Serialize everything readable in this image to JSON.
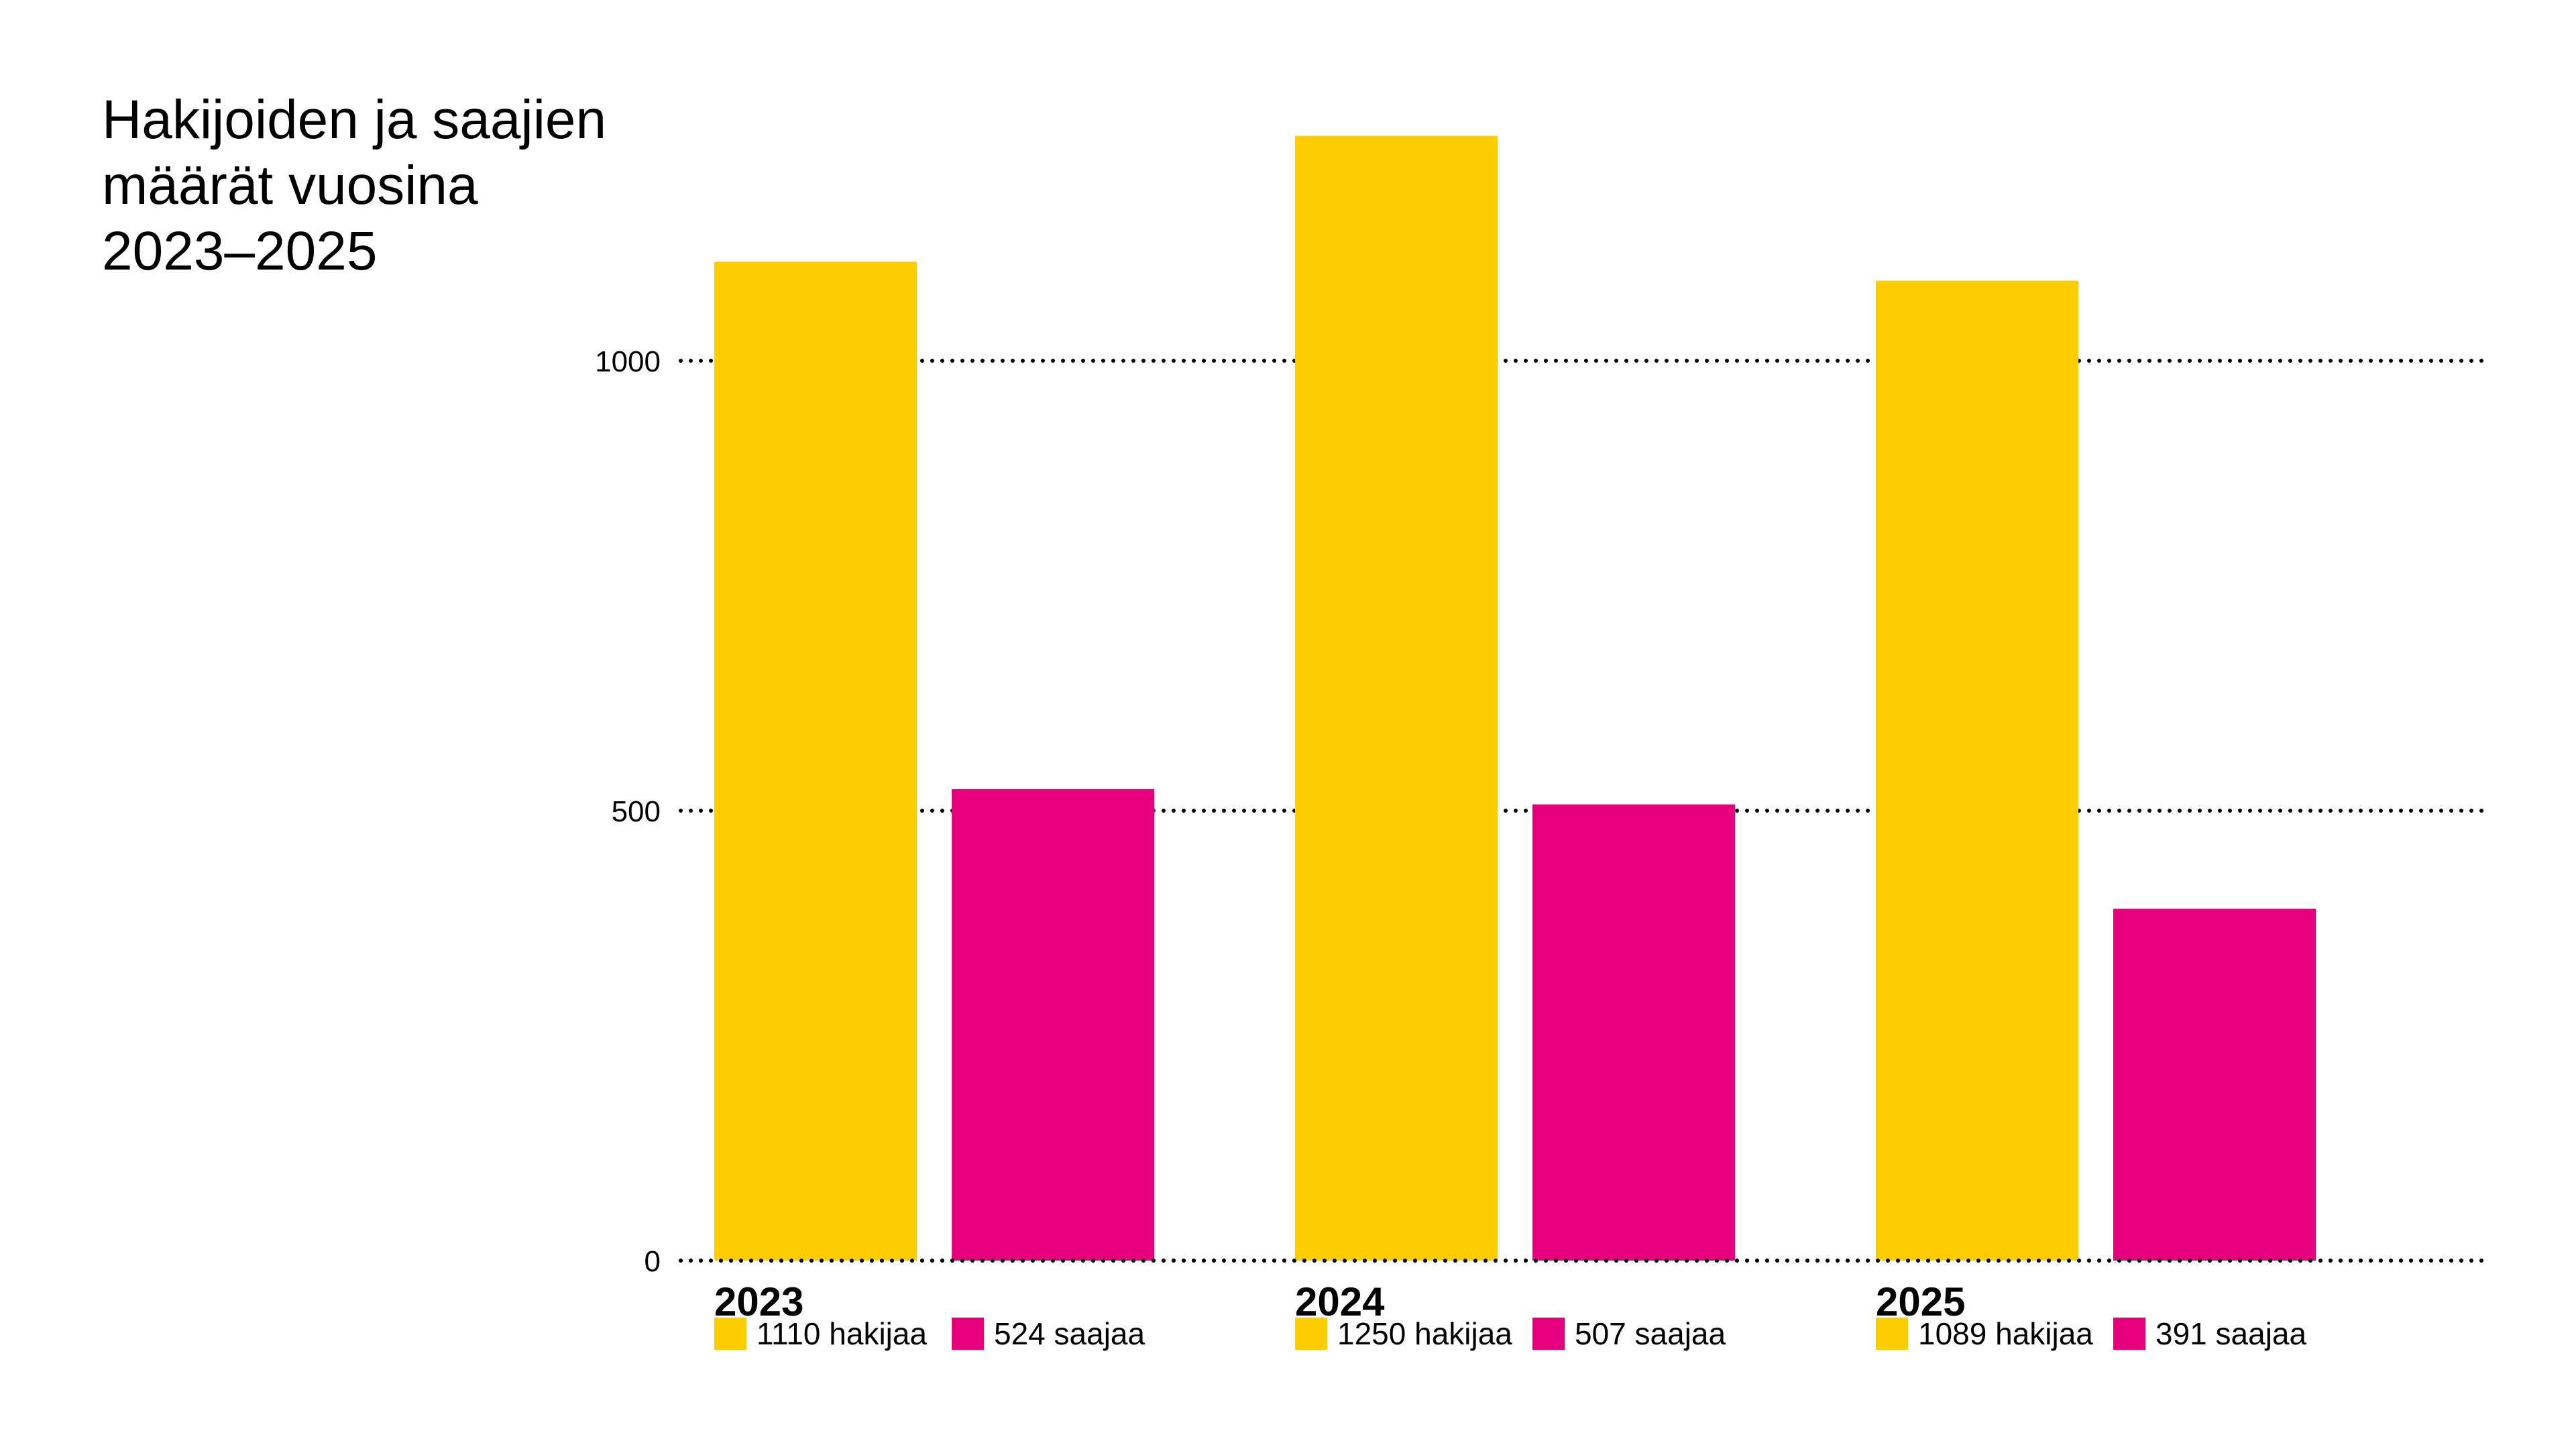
{
  "chart_data": {
    "type": "bar",
    "title_lines": [
      "Hakijoiden ja saajien",
      "määrät vuosina",
      "2023–2025"
    ],
    "categories": [
      "2023",
      "2024",
      "2025"
    ],
    "series": [
      {
        "key": "hakijaa",
        "color": "#FDCD00",
        "values": [
          1110,
          1250,
          1089
        ],
        "labels": [
          "1110 hakijaa",
          "1250 hakijaa",
          "1089 hakijaa"
        ]
      },
      {
        "key": "saajaa",
        "color": "#E6007E",
        "values": [
          524,
          507,
          391
        ],
        "labels": [
          "524 saajaa",
          "507 saajaa",
          "391 saajaa"
        ]
      }
    ],
    "yticks": [
      "0",
      "500",
      "1000"
    ],
    "ylim": [
      0,
      1280
    ],
    "grid": "dotted horizontal",
    "legend_placement": "below each category"
  }
}
